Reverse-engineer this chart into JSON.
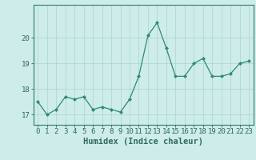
{
  "x": [
    0,
    1,
    2,
    3,
    4,
    5,
    6,
    7,
    8,
    9,
    10,
    11,
    12,
    13,
    14,
    15,
    16,
    17,
    18,
    19,
    20,
    21,
    22,
    23
  ],
  "y": [
    17.5,
    17.0,
    17.2,
    17.7,
    17.6,
    17.7,
    17.2,
    17.3,
    17.2,
    17.1,
    17.6,
    18.5,
    20.1,
    20.6,
    19.6,
    18.5,
    18.5,
    19.0,
    19.2,
    18.5,
    18.5,
    18.6,
    19.0,
    19.1
  ],
  "line_color": "#2e8b6e",
  "marker": "D",
  "marker_size": 2.0,
  "bg_color": "#ceecea",
  "grid_color": "#aed8d4",
  "xlabel": "Humidex (Indice chaleur)",
  "ylim": [
    16.6,
    21.3
  ],
  "yticks": [
    17,
    18,
    19,
    20
  ],
  "xticks": [
    0,
    1,
    2,
    3,
    4,
    5,
    6,
    7,
    8,
    9,
    10,
    11,
    12,
    13,
    14,
    15,
    16,
    17,
    18,
    19,
    20,
    21,
    22,
    23
  ],
  "xlabel_fontsize": 7.5,
  "tick_fontsize": 6.5,
  "tick_color": "#2e6b5e",
  "spine_color": "#2e7b6a",
  "linewidth": 0.9
}
